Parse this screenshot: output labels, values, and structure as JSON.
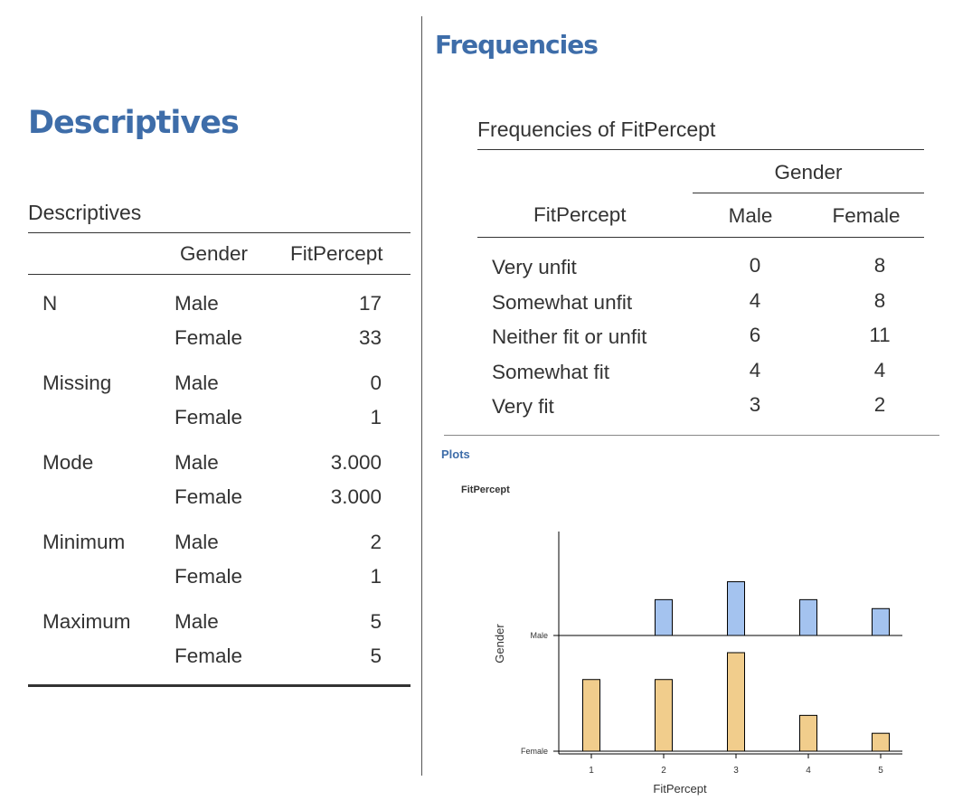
{
  "descriptives": {
    "heading": "Descriptives",
    "table_title": "Descriptives",
    "col_gender": "Gender",
    "col_fitpercept": "FitPercept",
    "rows": [
      {
        "stat": "N",
        "male": "17",
        "female": "33"
      },
      {
        "stat": "Missing",
        "male": "0",
        "female": "1"
      },
      {
        "stat": "Mode",
        "male": "3.000",
        "female": "3.000"
      },
      {
        "stat": "Minimum",
        "male": "2",
        "female": "1"
      },
      {
        "stat": "Maximum",
        "male": "5",
        "female": "5"
      }
    ],
    "male_label": "Male",
    "female_label": "Female"
  },
  "frequencies": {
    "heading": "Frequencies",
    "table_title": "Frequencies of FitPercept",
    "group_header": "Gender",
    "row_header": "FitPercept",
    "col_male": "Male",
    "col_female": "Female",
    "rows": [
      {
        "level": "Very unfit",
        "male": "0",
        "female": "8"
      },
      {
        "level": "Somewhat unfit",
        "male": "4",
        "female": "8"
      },
      {
        "level": "Neither fit or unfit",
        "male": "6",
        "female": "11"
      },
      {
        "level": "Somewhat fit",
        "male": "4",
        "female": "4"
      },
      {
        "level": "Very fit",
        "male": "3",
        "female": "2"
      }
    ]
  },
  "plots": {
    "heading": "Plots",
    "plot_title": "FitPercept"
  },
  "chart_data": {
    "type": "bar",
    "title": "FitPercept",
    "xlabel": "FitPercept",
    "ylabel": "Gender",
    "x": [
      1,
      2,
      3,
      4,
      5
    ],
    "x_tick_labels": [
      "1",
      "2",
      "3",
      "4",
      "5"
    ],
    "series": [
      {
        "name": "Male",
        "values": [
          0,
          4,
          6,
          4,
          3
        ],
        "color": "#a4c3ef"
      },
      {
        "name": "Female",
        "values": [
          8,
          8,
          11,
          4,
          2
        ],
        "color": "#f1cd8c"
      }
    ],
    "grid": false
  }
}
